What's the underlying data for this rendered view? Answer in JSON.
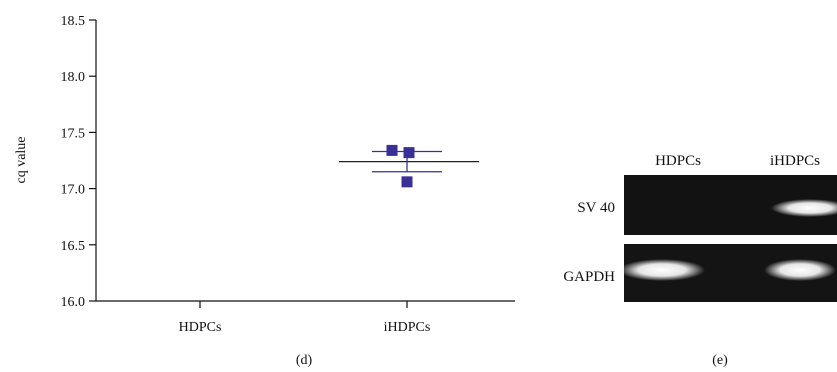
{
  "chart_data": {
    "type": "scatter",
    "ylabel": "cq value",
    "xlabel": "",
    "ylim": [
      16.0,
      18.5
    ],
    "yticks": [
      "16.0",
      "16.5",
      "17.0",
      "17.5",
      "18.0",
      "18.5"
    ],
    "categories": [
      "HDPCs",
      "iHDPCs"
    ],
    "series": [
      {
        "category": "iHDPCs",
        "points": [
          17.34,
          17.32,
          17.06
        ],
        "mean": 17.24,
        "error_upper": 17.33,
        "error_lower": 17.15,
        "color": "#3a2f96"
      }
    ],
    "grid": false,
    "panel_label": "(d)"
  },
  "gel": {
    "panel_label": "(e)",
    "lanes": [
      "HDPCs",
      "iHDPCs"
    ],
    "rows": [
      {
        "label": "SV 40",
        "bands": [
          0.0,
          1.0
        ]
      },
      {
        "label": "GAPDH",
        "bands": [
          1.0,
          1.0
        ]
      }
    ]
  }
}
